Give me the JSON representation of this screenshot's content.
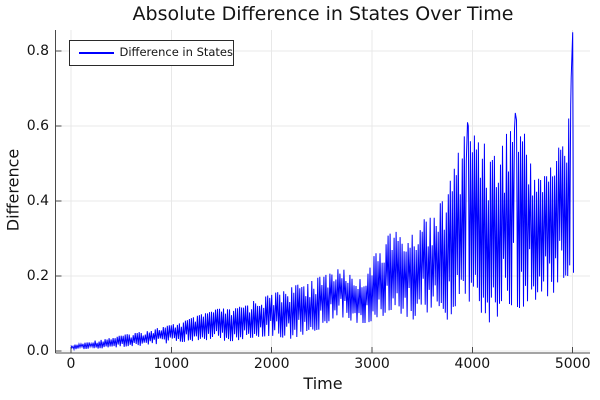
{
  "chart_data": {
    "type": "line",
    "title": "Absolute Difference in States Over Time",
    "xlabel": "Time",
    "ylabel": "Difference",
    "xlim": [
      0,
      5000
    ],
    "ylim": [
      0,
      0.86
    ],
    "xticks": [
      0,
      1000,
      2000,
      3000,
      4000,
      5000
    ],
    "xtick_labels": [
      "0",
      "1000",
      "2000",
      "3000",
      "4000",
      "5000"
    ],
    "yticks": [
      0,
      0.2,
      0.4,
      0.6,
      0.8
    ],
    "ytick_labels": [
      "0.0",
      "0.2",
      "0.4",
      "0.6",
      "0.8"
    ],
    "grid": true,
    "frame": "left-bottom-spines-only",
    "legend": {
      "position": "top-left",
      "entries": [
        {
          "label": "Difference in States",
          "color": "#0000ff"
        }
      ]
    },
    "colors": {
      "background": "#ffffff",
      "line": "#0000ff",
      "axis": "#4a4a4a",
      "grid": "#e8e8e8",
      "text": "#141414",
      "legend_border": "#2a2a2a"
    },
    "series": [
      {
        "name": "Difference in States",
        "color": "#0000ff",
        "style": "high-frequency oscillation between lower and upper envelope",
        "envelope": {
          "osc_step": 20,
          "x": [
            0,
            100,
            200,
            300,
            400,
            500,
            600,
            700,
            800,
            900,
            1000,
            1100,
            1200,
            1300,
            1400,
            1500,
            1600,
            1700,
            1800,
            1900,
            2000,
            2100,
            2200,
            2300,
            2400,
            2500,
            2600,
            2700,
            2800,
            2900,
            3000,
            3100,
            3200,
            3300,
            3400,
            3500,
            3600,
            3700,
            3800,
            3900,
            3950,
            4000,
            4100,
            4200,
            4300,
            4400,
            4430,
            4500,
            4600,
            4700,
            4800,
            4900,
            4950,
            4990,
            5000,
            5008
          ],
          "upper": [
            0.015,
            0.02,
            0.026,
            0.031,
            0.036,
            0.042,
            0.047,
            0.052,
            0.058,
            0.064,
            0.07,
            0.078,
            0.088,
            0.098,
            0.108,
            0.115,
            0.11,
            0.12,
            0.132,
            0.142,
            0.152,
            0.162,
            0.172,
            0.18,
            0.19,
            0.2,
            0.212,
            0.222,
            0.2,
            0.19,
            0.245,
            0.285,
            0.33,
            0.3,
            0.31,
            0.35,
            0.37,
            0.4,
            0.47,
            0.57,
            0.61,
            0.58,
            0.575,
            0.52,
            0.555,
            0.62,
            0.635,
            0.6,
            0.5,
            0.46,
            0.52,
            0.56,
            0.64,
            0.73,
            0.85,
            0.22
          ],
          "lower": [
            0.004,
            0.005,
            0.006,
            0.007,
            0.008,
            0.01,
            0.012,
            0.014,
            0.017,
            0.019,
            0.021,
            0.023,
            0.025,
            0.028,
            0.03,
            0.028,
            0.026,
            0.03,
            0.034,
            0.038,
            0.04,
            0.036,
            0.032,
            0.04,
            0.05,
            0.06,
            0.08,
            0.09,
            0.08,
            0.07,
            0.08,
            0.09,
            0.1,
            0.09,
            0.08,
            0.1,
            0.08,
            0.06,
            0.1,
            0.12,
            0.13,
            0.12,
            0.1,
            0.065,
            0.1,
            0.12,
            0.13,
            0.08,
            0.13,
            0.15,
            0.14,
            0.18,
            0.2,
            0.25,
            0.3,
            0.205
          ]
        },
        "peaks": [
          {
            "x": 3952,
            "y": 0.61
          },
          {
            "x": 4428,
            "y": 0.635
          },
          {
            "x": 4985,
            "y": 0.73
          },
          {
            "x": 5000,
            "y": 0.85
          }
        ]
      }
    ]
  }
}
